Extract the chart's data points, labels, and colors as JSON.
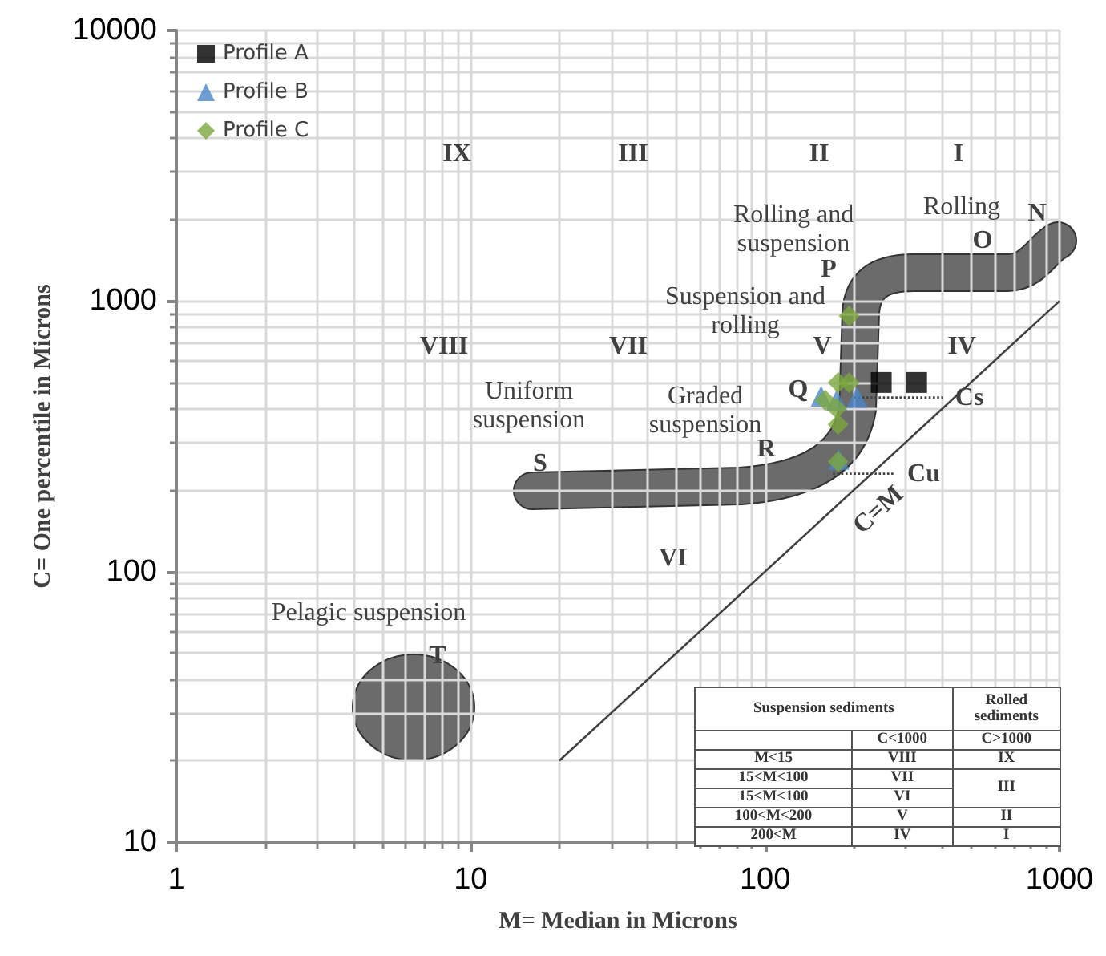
{
  "chart_data": {
    "type": "scatter",
    "xlabel": "M= Median in Microns",
    "ylabel": "C= One percentile in Microns",
    "log": "xy",
    "xlim": [
      1,
      1000
    ],
    "ylim": [
      10,
      10000
    ],
    "xticks": [
      1,
      10,
      100,
      1000
    ],
    "yticks": [
      10,
      100,
      1000,
      10000
    ],
    "grid": true,
    "legend": "top left",
    "series": [
      {
        "name": "Profile A",
        "color": "#000000",
        "marker": "square",
        "x": [
          248,
          327
        ],
        "values": [
          500,
          500
        ]
      },
      {
        "name": "Profile B",
        "color": "#4a86c8",
        "marker": "triangle",
        "x": [
          155,
          175,
          205,
          178
        ],
        "values": [
          445,
          430,
          440,
          260
        ]
      },
      {
        "name": "Profile C",
        "color": "#7aa83c",
        "marker": "diamond",
        "x": [
          193,
          177,
          193,
          175,
          177,
          177,
          160
        ],
        "values": [
          880,
          500,
          500,
          400,
          350,
          255,
          430
        ]
      },
      {
        "type": "line",
        "color": "#404040",
        "marker": "none",
        "line_style": "solid",
        "x": [
          20,
          1000
        ],
        "values": [
          20,
          1000
        ]
      },
      {
        "type": "line",
        "color": "#404040",
        "marker": "none",
        "line_style": "dotted",
        "x": [
          200,
          400
        ],
        "values": [
          440,
          440
        ]
      },
      {
        "type": "line",
        "color": "#404040",
        "marker": "none",
        "line_style": "dotted",
        "x": [
          170,
          275
        ],
        "values": [
          230,
          230
        ]
      }
    ],
    "annotations": [
      "IX",
      "III",
      "II",
      "I",
      "VIII",
      "VII",
      "V",
      "IV",
      "VI",
      "C=M",
      "Rolling and\nsuspension",
      "Rolling",
      "N",
      "O",
      "P",
      "Suspension and\nrolling",
      "Q",
      "Graded\nsuspension",
      "R",
      "Uniform\nsuspension",
      "S",
      "Pelagic suspension",
      "T",
      {
        "text": "Cs",
        "x": 400,
        "y": 440
      },
      {
        "text": "Cu",
        "x": 275,
        "y": 230
      },
      "Suspension sediments",
      "Rolled sediments",
      "C<1000",
      "C>1000",
      "M<15",
      "VIII",
      "IX",
      "15<M<100",
      "VII",
      "III",
      "15<M<100",
      "VI",
      "100<M<200",
      "V",
      "II",
      "200<M",
      "IV",
      "I"
    ]
  }
}
